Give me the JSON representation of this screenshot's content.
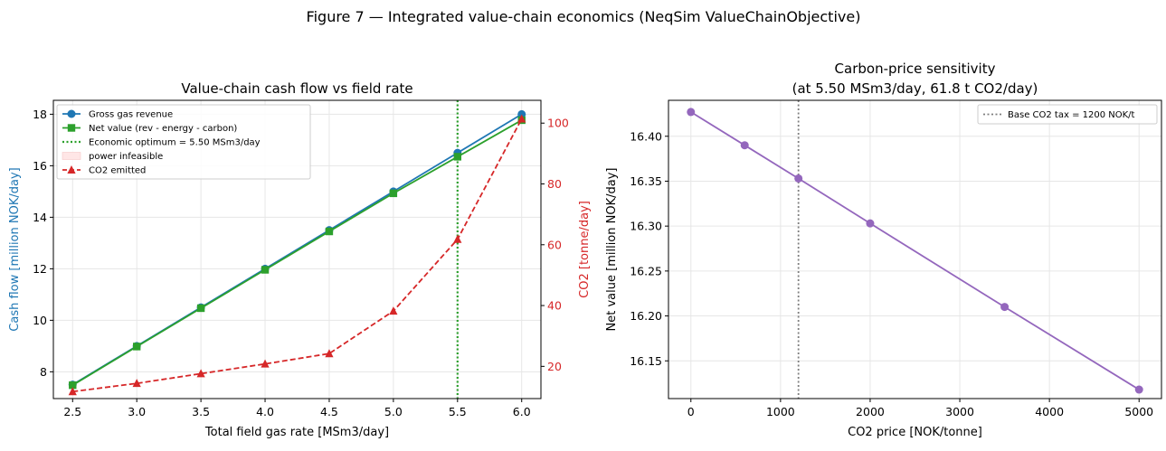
{
  "figure": {
    "suptitle": "Figure 7 — Integrated value-chain economics (NeqSim ValueChainObjective)"
  },
  "chart_data": [
    {
      "type": "line",
      "title": "Value-chain cash flow vs field rate",
      "xlabel": "Total field gas rate [MSm3/day]",
      "ylabel": "Cash flow [million NOK/day]",
      "ylabel_right": "CO2 [tonne/day]",
      "xlim": [
        2.35,
        6.15
      ],
      "ylim": [
        6.96,
        18.54
      ],
      "ylim_right": [
        9.4,
        107.5
      ],
      "xticks": [
        2.5,
        3.0,
        3.5,
        4.0,
        4.5,
        5.0,
        5.5,
        6.0
      ],
      "yticks": [
        8,
        10,
        12,
        14,
        16,
        18
      ],
      "yticks_right": [
        20,
        40,
        60,
        80,
        100
      ],
      "x": [
        2.5,
        3.0,
        3.5,
        4.0,
        4.5,
        5.0,
        5.5,
        6.0
      ],
      "series": [
        {
          "name": "Gross gas revenue",
          "color": "#1f77b4",
          "marker": "circle",
          "axis": "left",
          "style": "solid",
          "values": [
            7.5,
            9.0,
            10.5,
            12.0,
            13.5,
            15.0,
            16.5,
            18.0
          ]
        },
        {
          "name": "Net value (rev - energy - carbon)",
          "color": "#2ca02c",
          "marker": "square",
          "axis": "left",
          "style": "solid",
          "values": [
            7.48,
            8.98,
            10.47,
            11.96,
            13.45,
            14.93,
            16.35,
            17.77
          ]
        },
        {
          "name": "CO2 emitted",
          "color": "#d62728",
          "marker": "triangle",
          "axis": "right",
          "style": "dashed",
          "values": [
            11.7,
            14.4,
            17.6,
            20.8,
            24.2,
            38.2,
            61.8,
            101.4
          ]
        }
      ],
      "vline": {
        "name": "Economic optimum = 5.50 MSm3/day",
        "x": 5.5,
        "color": "#2ca02c",
        "style": "dotted"
      },
      "legend_extra": {
        "name": "power infeasible",
        "color": "#ffe6e6"
      },
      "legend_placement": "top-left",
      "grid": true
    },
    {
      "type": "line",
      "title_line1": "Carbon-price sensitivity",
      "title_line2": "(at 5.50 MSm3/day, 61.8 t CO2/day)",
      "xlabel": "CO2 price [NOK/tonne]",
      "ylabel": "Net value [million NOK/day]",
      "xlim": [
        -250,
        5250
      ],
      "ylim": [
        16.108,
        16.44
      ],
      "xticks": [
        0,
        1000,
        2000,
        3000,
        4000,
        5000
      ],
      "yticks": [
        16.15,
        16.2,
        16.25,
        16.3,
        16.35,
        16.4
      ],
      "ytick_labels": [
        "16.15",
        "16.20",
        "16.25",
        "16.30",
        "16.35",
        "16.40"
      ],
      "series": [
        {
          "name": "",
          "color": "#9467bd",
          "marker": "circle",
          "x": [
            0,
            600,
            1200,
            2000,
            3500,
            5000
          ],
          "values": [
            16.427,
            16.39,
            16.353,
            16.303,
            16.21,
            16.118
          ]
        }
      ],
      "vline": {
        "name": "Base CO2 tax = 1200 NOK/t",
        "x": 1200,
        "color": "#7f7f7f",
        "style": "dotted"
      },
      "legend_placement": "top-right",
      "grid": true
    }
  ]
}
